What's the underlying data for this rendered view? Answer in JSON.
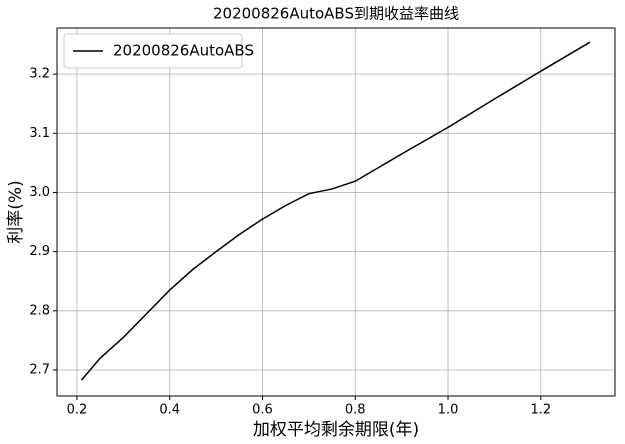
{
  "chart_data": {
    "type": "line",
    "title": "20200826AutoABS到期收益率曲线",
    "x_label": "加权平均剩余期限(年)",
    "y_label": "利率(%)",
    "x": [
      0.21,
      0.25,
      0.3,
      0.35,
      0.4,
      0.45,
      0.5,
      0.55,
      0.6,
      0.65,
      0.7,
      0.75,
      0.8,
      0.85,
      0.9,
      1.0,
      1.1,
      1.2,
      1.306
    ],
    "series": [
      {
        "name": "20200826AutoABS",
        "color": "#000000",
        "values": [
          2.683,
          2.72,
          2.755,
          2.795,
          2.835,
          2.87,
          2.9,
          2.929,
          2.955,
          2.978,
          2.998,
          3.006,
          3.019,
          3.042,
          3.065,
          3.11,
          3.158,
          3.205,
          3.254
        ]
      }
    ],
    "xlim": [
      0.157,
      1.36
    ],
    "ylim": [
      2.656,
      3.278
    ],
    "xticks": [
      0.2,
      0.4,
      0.6,
      0.8,
      {
        "value": 1,
        "label": "1.0"
      },
      1.2
    ],
    "yticks": [
      2.7,
      2.8,
      2.9,
      {
        "value": 3,
        "label": "3.0"
      },
      3.1,
      3.2
    ],
    "grid": true,
    "legend": "upper left"
  }
}
